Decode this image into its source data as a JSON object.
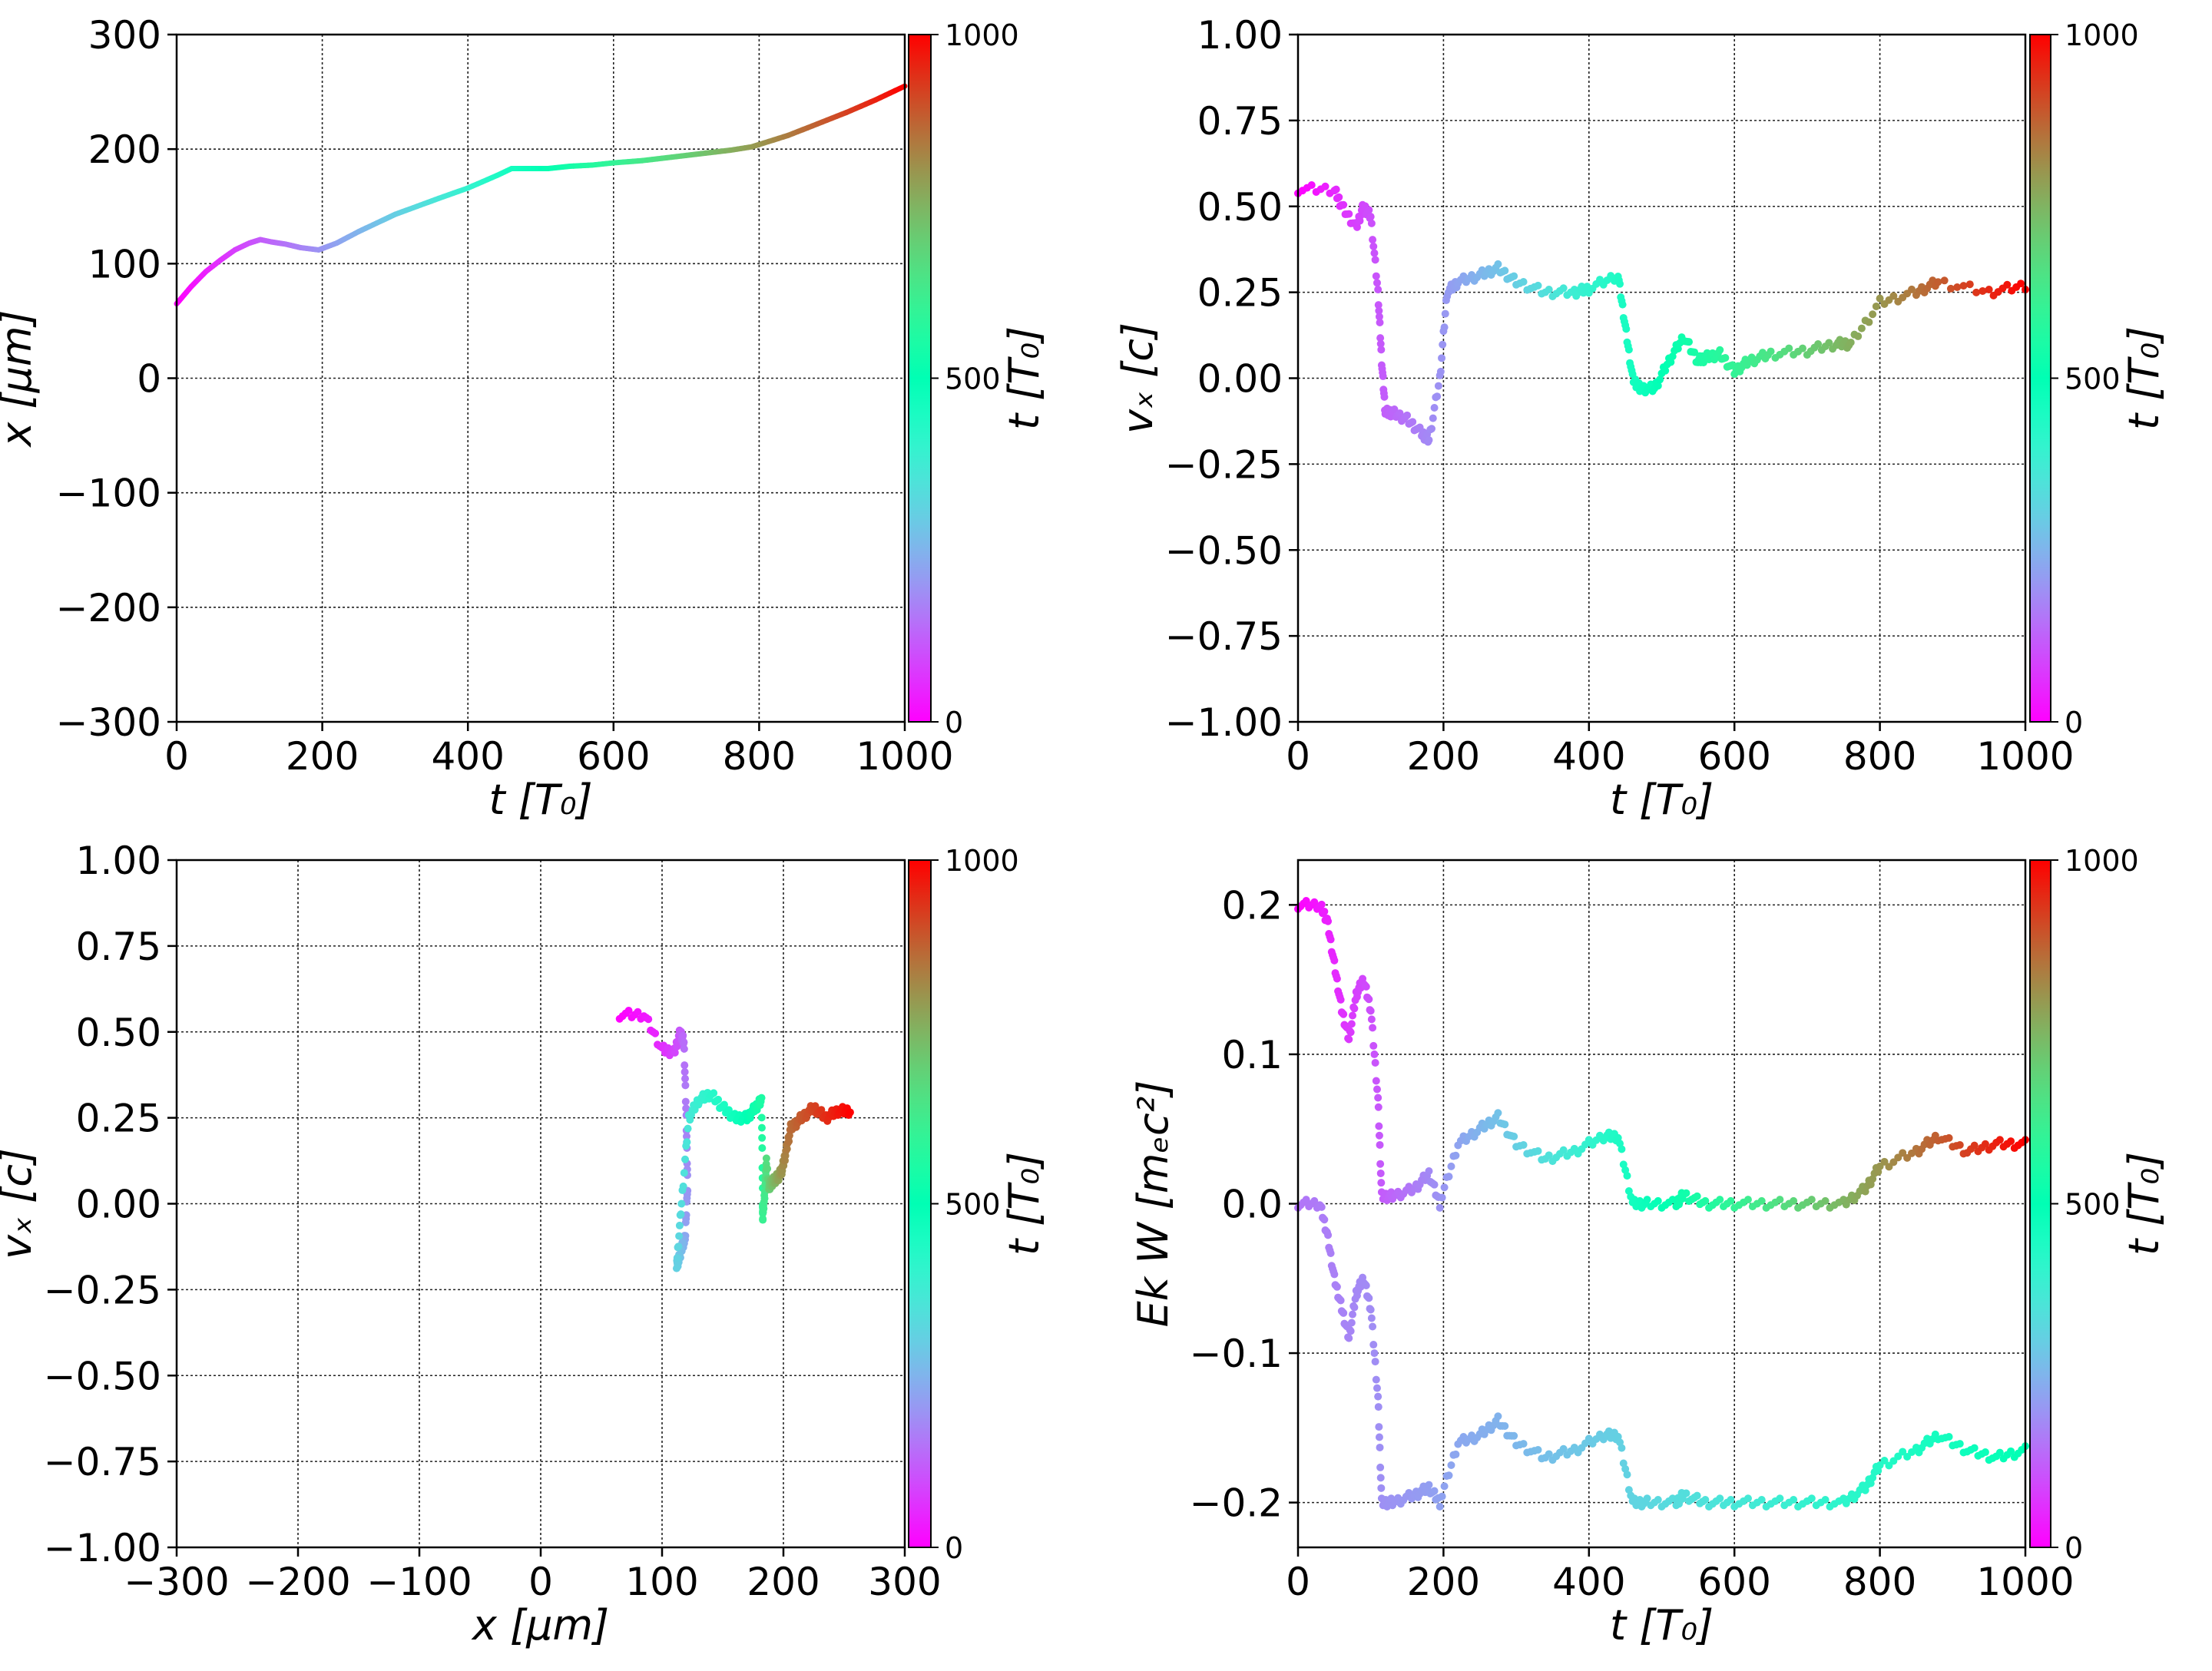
{
  "colormap": "rainbow",
  "colors": {
    "low": "#8000ff",
    "high": "#ff0000"
  },
  "chart_data": [
    {
      "id": "tl",
      "type": "line",
      "xlabel": "t  [T₀]",
      "ylabel": "x  [μm]",
      "xlim": [
        0,
        1000
      ],
      "ylim": [
        -300,
        300
      ],
      "xticks": [
        "0",
        "200",
        "400",
        "600",
        "800",
        "1000"
      ],
      "yticks": [
        "−300",
        "−200",
        "−100",
        "0",
        "100",
        "200",
        "300"
      ],
      "grid": true,
      "colorbar": {
        "label": "t [T₀]",
        "ticks": [
          "0",
          "500",
          "1000"
        ],
        "range": [
          0,
          1000
        ]
      },
      "series": [
        {
          "x": [
            0,
            20,
            40,
            60,
            80,
            100,
            115,
            130,
            150,
            170,
            195,
            220,
            250,
            280,
            300,
            330,
            360,
            400,
            440,
            460,
            480,
            510,
            540,
            570,
            600,
            640,
            680,
            720,
            760,
            790,
            800,
            840,
            880,
            920,
            960,
            1000
          ],
          "y": [
            65,
            80,
            93,
            103,
            112,
            118,
            121,
            119,
            117,
            114,
            112,
            118,
            128,
            137,
            143,
            150,
            157,
            166,
            177,
            183,
            183,
            183,
            185,
            186,
            188,
            190,
            193,
            196,
            199,
            202,
            204,
            212,
            222,
            232,
            243,
            255
          ]
        }
      ]
    },
    {
      "id": "tr",
      "type": "scatter",
      "xlabel": "t [T₀]",
      "ylabel": "vₓ [c]",
      "xlim": [
        0,
        1000
      ],
      "ylim": [
        -1.0,
        1.0
      ],
      "xticks": [
        "0",
        "200",
        "400",
        "600",
        "800",
        "1000"
      ],
      "yticks": [
        "−1.00",
        "−0.75",
        "−0.50",
        "−0.25",
        "0.00",
        "0.25",
        "0.50",
        "0.75",
        "1.00"
      ],
      "grid": true,
      "colorbar": {
        "label": "t [T₀]",
        "ticks": [
          "0",
          "500",
          "1000"
        ],
        "range": [
          0,
          1000
        ]
      },
      "series": [
        {
          "x": [
            0,
            50,
            60,
            80,
            90,
            100,
            110,
            115,
            120,
            130,
            150,
            170,
            180,
            195,
            205,
            220,
            250,
            275,
            300,
            340,
            380,
            400,
            440,
            450,
            460,
            470,
            490,
            510,
            530,
            550,
            560,
            580,
            600,
            620,
            650,
            700,
            740,
            760,
            800,
            850,
            880,
            950,
            1000
          ],
          "y": [
            0.55,
            0.55,
            0.5,
            0.44,
            0.5,
            0.47,
            0.25,
            0.05,
            -0.1,
            -0.1,
            -0.12,
            -0.16,
            -0.18,
            0.0,
            0.25,
            0.28,
            0.3,
            0.32,
            0.28,
            0.25,
            0.25,
            0.26,
            0.3,
            0.15,
            0.0,
            -0.03,
            -0.03,
            0.05,
            0.12,
            0.05,
            0.06,
            0.07,
            0.02,
            0.05,
            0.07,
            0.08,
            0.1,
            0.1,
            0.22,
            0.25,
            0.28,
            0.25,
            0.27
          ]
        }
      ]
    },
    {
      "id": "bl",
      "type": "scatter",
      "xlabel": "x [μm]",
      "ylabel": "vₓ [c]",
      "xlim": [
        -300,
        300
      ],
      "ylim": [
        -1.0,
        1.0
      ],
      "xticks": [
        "−300",
        "−200",
        "−100",
        "0",
        "100",
        "200",
        "300"
      ],
      "yticks": [
        "−1.00",
        "−0.75",
        "−0.50",
        "−0.25",
        "0.00",
        "0.25",
        "0.50",
        "0.75",
        "1.00"
      ],
      "grid": true,
      "colorbar": {
        "label": "t [T₀]",
        "ticks": [
          "0",
          "500",
          "1000"
        ],
        "range": [
          0,
          1000
        ]
      },
      "series": [
        {
          "x": [
            65,
            85,
            100,
            110,
            115,
            118,
            120,
            121,
            119,
            117,
            114,
            112,
            116,
            122,
            130,
            140,
            150,
            160,
            170,
            177,
            182,
            183,
            183,
            185,
            186,
            188,
            190,
            193,
            196,
            199,
            202,
            206,
            215,
            225,
            235,
            245,
            255
          ],
          "y": [
            0.55,
            0.55,
            0.45,
            0.44,
            0.5,
            0.47,
            0.25,
            0.05,
            -0.1,
            -0.12,
            -0.16,
            -0.18,
            0.0,
            0.25,
            0.3,
            0.32,
            0.28,
            0.25,
            0.25,
            0.28,
            0.3,
            0.0,
            -0.04,
            0.05,
            0.12,
            0.05,
            0.06,
            0.07,
            0.08,
            0.1,
            0.15,
            0.22,
            0.25,
            0.28,
            0.25,
            0.27,
            0.27
          ]
        }
      ]
    },
    {
      "id": "br",
      "type": "scatter",
      "xlabel": "t [T₀]",
      "ylabel": "Ek W [mₑc²]",
      "xlim": [
        0,
        1000
      ],
      "ylim": [
        -0.23,
        0.23
      ],
      "xticks": [
        "0",
        "200",
        "400",
        "600",
        "800",
        "1000"
      ],
      "yticks": [
        "−0.2",
        "−0.1",
        "0.0",
        "0.1",
        "0.2"
      ],
      "ytick_values": [
        -0.2,
        -0.1,
        0.0,
        0.1,
        0.2
      ],
      "grid": true,
      "colorbar": {
        "label": "t [T₀]",
        "ticks": [
          "0",
          "500",
          "1000"
        ],
        "range": [
          0,
          1000
        ]
      },
      "series": [
        {
          "name": "Ek",
          "x": [
            0,
            30,
            40,
            50,
            60,
            70,
            80,
            90,
            100,
            110,
            115,
            130,
            160,
            180,
            195,
            220,
            250,
            275,
            300,
            340,
            380,
            420,
            440,
            460,
            480,
            520,
            530,
            560,
            600,
            650,
            700,
            750,
            780,
            800,
            850,
            880,
            920,
            960,
            1000
          ],
          "y": [
            0.2,
            0.2,
            0.19,
            0.16,
            0.13,
            0.11,
            0.14,
            0.15,
            0.13,
            0.07,
            0.005,
            0.005,
            0.01,
            0.02,
            0.0,
            0.04,
            0.05,
            0.058,
            0.04,
            0.03,
            0.035,
            0.045,
            0.045,
            0.0,
            0.0,
            0.0,
            0.006,
            0.0,
            0.0,
            0.0,
            0.0,
            0.0,
            0.01,
            0.025,
            0.035,
            0.045,
            0.035,
            0.04,
            0.04
          ]
        },
        {
          "name": "W",
          "x": [
            0,
            30,
            40,
            50,
            60,
            70,
            80,
            90,
            100,
            110,
            115,
            130,
            160,
            180,
            195,
            220,
            250,
            275,
            300,
            340,
            380,
            420,
            440,
            460,
            480,
            520,
            530,
            560,
            600,
            650,
            700,
            750,
            780,
            800,
            850,
            880,
            920,
            960,
            1000
          ],
          "y": [
            0.0,
            0.0,
            -0.02,
            -0.05,
            -0.07,
            -0.09,
            -0.06,
            -0.05,
            -0.07,
            -0.13,
            -0.2,
            -0.2,
            -0.195,
            -0.19,
            -0.2,
            -0.16,
            -0.155,
            -0.145,
            -0.16,
            -0.17,
            -0.165,
            -0.155,
            -0.155,
            -0.2,
            -0.2,
            -0.2,
            -0.195,
            -0.2,
            -0.2,
            -0.2,
            -0.2,
            -0.2,
            -0.19,
            -0.175,
            -0.165,
            -0.155,
            -0.165,
            -0.17,
            -0.165
          ]
        }
      ]
    }
  ]
}
